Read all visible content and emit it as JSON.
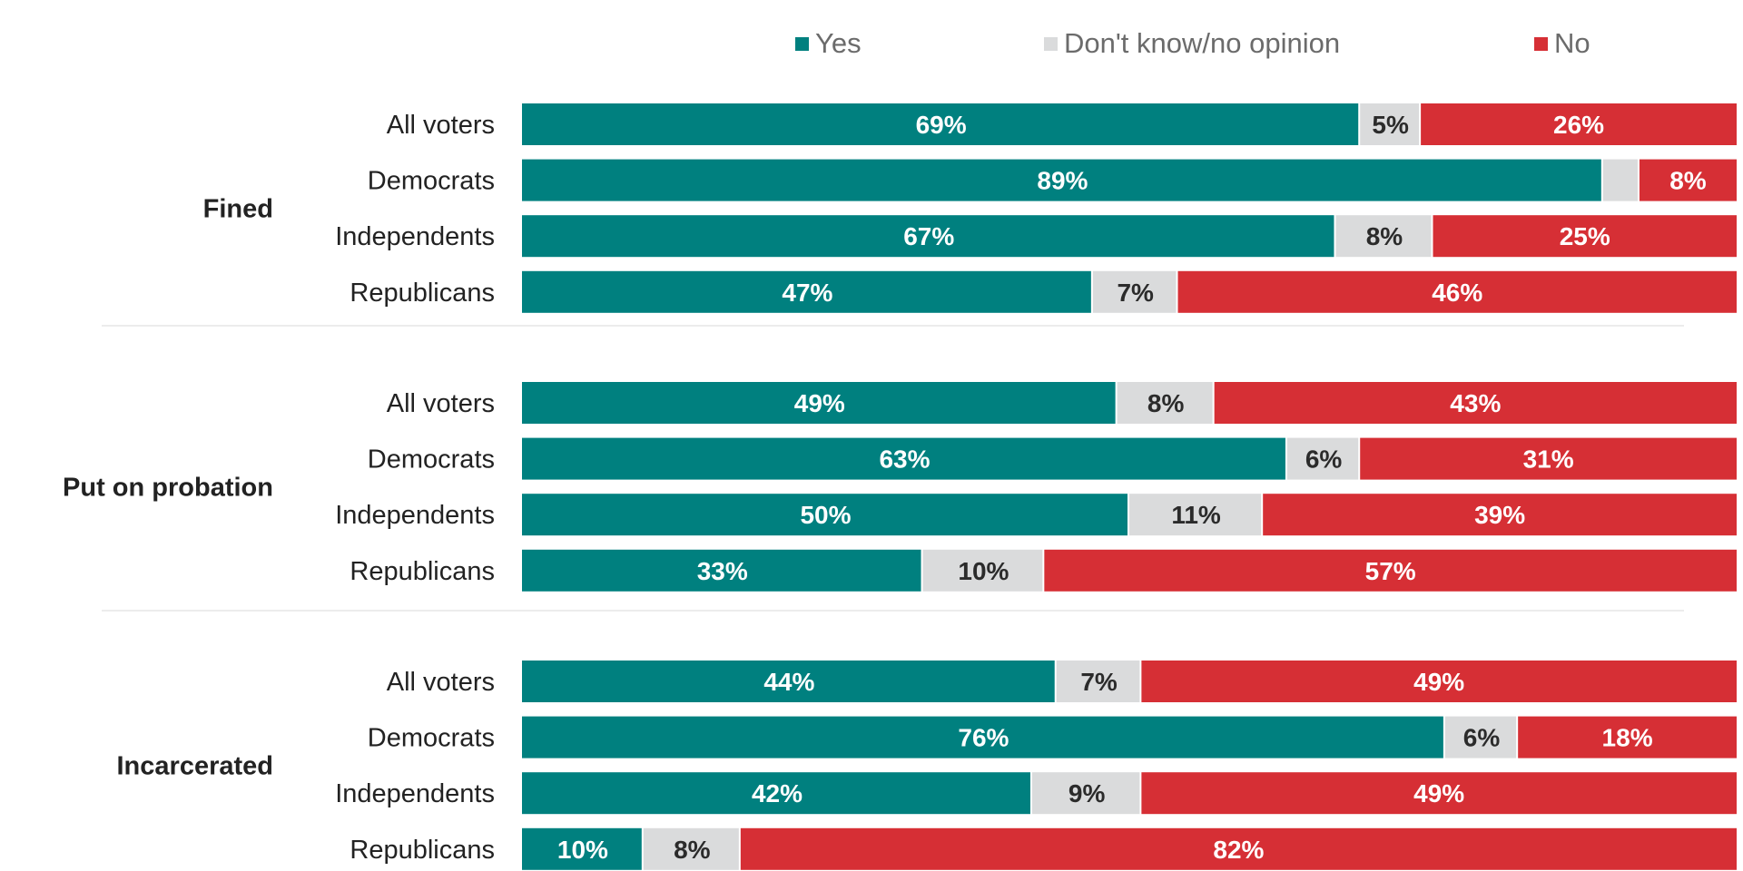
{
  "chart_data": {
    "type": "bar",
    "orientation": "horizontal",
    "stacked": true,
    "xlim": [
      0,
      100
    ],
    "legend_placement": "top",
    "grid": false,
    "colors": {
      "Yes": "#00807f",
      "Don't know/no opinion": "#dadbdc",
      "No": "#d62f35"
    },
    "legend": [
      "Yes",
      "Don't know/no opinion",
      "No"
    ],
    "groups": [
      {
        "label": "Fined",
        "rows": [
          {
            "category": "All voters",
            "values": [
              69,
              5,
              26
            ],
            "labels": [
              "69%",
              "5%",
              "26%"
            ]
          },
          {
            "category": "Democrats",
            "values": [
              89,
              3,
              8
            ],
            "labels": [
              "89%",
              "",
              "8%"
            ]
          },
          {
            "category": "Independents",
            "values": [
              67,
              8,
              25
            ],
            "labels": [
              "67%",
              "8%",
              "25%"
            ]
          },
          {
            "category": "Republicans",
            "values": [
              47,
              7,
              46
            ],
            "labels": [
              "47%",
              "7%",
              "46%"
            ]
          }
        ]
      },
      {
        "label": "Put on probation",
        "rows": [
          {
            "category": "All voters",
            "values": [
              49,
              8,
              43
            ],
            "labels": [
              "49%",
              "8%",
              "43%"
            ]
          },
          {
            "category": "Democrats",
            "values": [
              63,
              6,
              31
            ],
            "labels": [
              "63%",
              "6%",
              "31%"
            ]
          },
          {
            "category": "Independents",
            "values": [
              50,
              11,
              39
            ],
            "labels": [
              "50%",
              "11%",
              "39%"
            ]
          },
          {
            "category": "Republicans",
            "values": [
              33,
              10,
              57
            ],
            "labels": [
              "33%",
              "10%",
              "57%"
            ]
          }
        ]
      },
      {
        "label": "Incarcerated",
        "rows": [
          {
            "category": "All voters",
            "values": [
              44,
              7,
              49
            ],
            "labels": [
              "44%",
              "7%",
              "49%"
            ]
          },
          {
            "category": "Democrats",
            "values": [
              76,
              6,
              18
            ],
            "labels": [
              "76%",
              "6%",
              "18%"
            ]
          },
          {
            "category": "Independents",
            "values": [
              42,
              9,
              49
            ],
            "labels": [
              "42%",
              "9%",
              "49%"
            ]
          },
          {
            "category": "Republicans",
            "values": [
              10,
              8,
              82
            ],
            "labels": [
              "10%",
              "8%",
              "82%"
            ]
          }
        ]
      }
    ]
  }
}
